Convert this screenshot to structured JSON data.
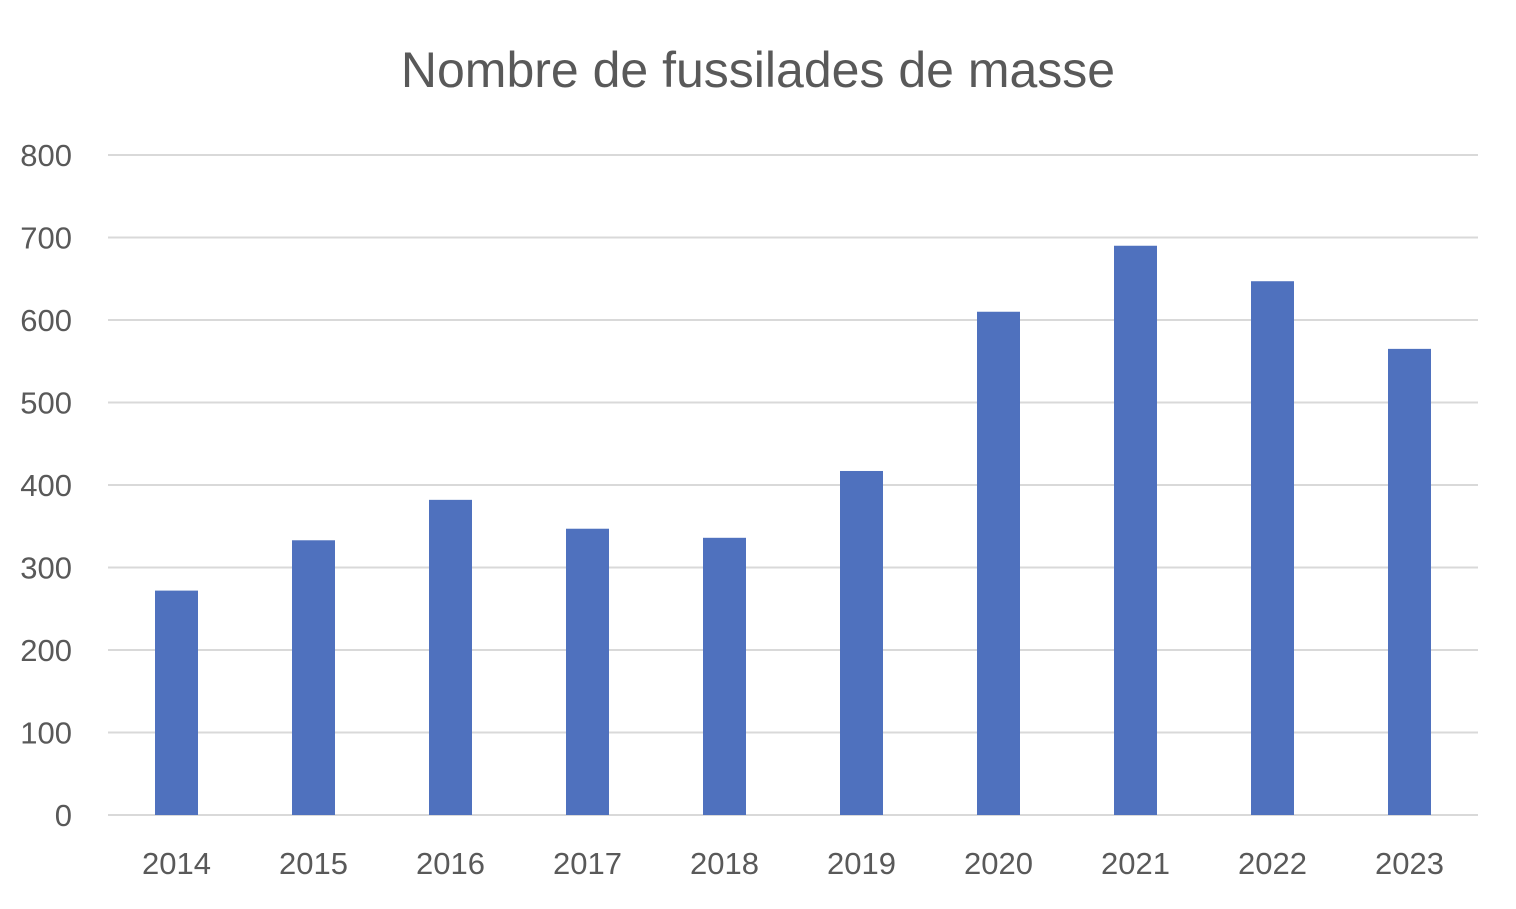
{
  "chart_data": {
    "type": "bar",
    "title": "Nombre de fussilades de masse",
    "xlabel": "",
    "ylabel": "",
    "categories": [
      "2014",
      "2015",
      "2016",
      "2017",
      "2018",
      "2019",
      "2020",
      "2021",
      "2022",
      "2023"
    ],
    "values": [
      272,
      333,
      382,
      347,
      336,
      417,
      610,
      690,
      647,
      565
    ],
    "ylim": [
      0,
      800
    ],
    "yticks": [
      "0",
      "100",
      "200",
      "300",
      "400",
      "500",
      "600",
      "700",
      "800"
    ],
    "grid": true,
    "legend": "none",
    "bar_color": "#4F71BE",
    "grid_color": "#D9D9D9",
    "text_color": "#595959"
  }
}
